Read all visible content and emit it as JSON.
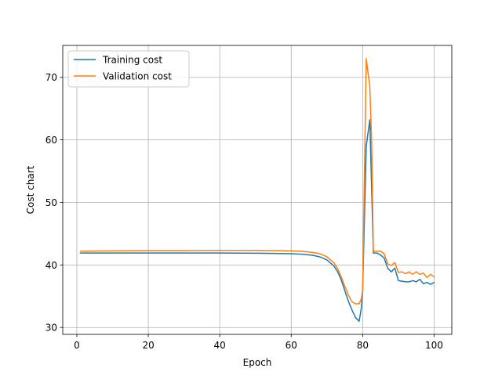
{
  "chart_data": {
    "type": "line",
    "xlabel": "Epoch",
    "ylabel": "Cost chart",
    "xlim": [
      -3.95,
      104.95
    ],
    "ylim": [
      28.9,
      75.1
    ],
    "xticks": [
      0,
      20,
      40,
      60,
      80,
      100
    ],
    "yticks": [
      30,
      40,
      50,
      60,
      70
    ],
    "grid": true,
    "legend_position": "upper-left",
    "series": [
      {
        "name": "Training cost",
        "color": "#1f77b4",
        "points": [
          [
            1,
            41.9
          ],
          [
            10,
            41.9
          ],
          [
            20,
            41.9
          ],
          [
            30,
            41.9
          ],
          [
            40,
            41.9
          ],
          [
            50,
            41.88
          ],
          [
            55,
            41.85
          ],
          [
            60,
            41.8
          ],
          [
            63,
            41.72
          ],
          [
            66,
            41.55
          ],
          [
            68,
            41.3
          ],
          [
            70,
            40.8
          ],
          [
            72,
            39.8
          ],
          [
            73,
            38.9
          ],
          [
            74,
            37.6
          ],
          [
            75,
            35.9
          ],
          [
            76,
            34.2
          ],
          [
            77,
            32.8
          ],
          [
            78,
            31.6
          ],
          [
            79,
            31.0
          ],
          [
            79.6,
            33.0
          ],
          [
            80,
            36.0
          ],
          [
            81,
            59.0
          ],
          [
            82,
            63.2
          ],
          [
            83,
            41.9
          ],
          [
            84,
            41.9
          ],
          [
            85,
            41.6
          ],
          [
            86,
            41.1
          ],
          [
            87,
            39.5
          ],
          [
            88,
            38.9
          ],
          [
            89,
            39.5
          ],
          [
            90,
            37.5
          ],
          [
            91,
            37.4
          ],
          [
            92,
            37.3
          ],
          [
            93,
            37.3
          ],
          [
            94,
            37.5
          ],
          [
            95,
            37.3
          ],
          [
            96,
            37.7
          ],
          [
            97,
            37.0
          ],
          [
            98,
            37.2
          ],
          [
            99,
            36.9
          ],
          [
            100,
            37.2
          ]
        ]
      },
      {
        "name": "Validation cost",
        "color": "#ff7f0e",
        "points": [
          [
            1,
            42.2
          ],
          [
            10,
            42.25
          ],
          [
            20,
            42.3
          ],
          [
            30,
            42.3
          ],
          [
            40,
            42.32
          ],
          [
            50,
            42.32
          ],
          [
            55,
            42.3
          ],
          [
            60,
            42.25
          ],
          [
            63,
            42.18
          ],
          [
            66,
            42.0
          ],
          [
            68,
            41.8
          ],
          [
            70,
            41.3
          ],
          [
            72,
            40.3
          ],
          [
            73,
            39.4
          ],
          [
            74,
            38.1
          ],
          [
            75,
            36.6
          ],
          [
            76,
            35.2
          ],
          [
            77,
            34.1
          ],
          [
            78,
            33.8
          ],
          [
            79,
            33.8
          ],
          [
            79.6,
            34.5
          ],
          [
            80,
            36.0
          ],
          [
            81,
            73.0
          ],
          [
            82,
            68.5
          ],
          [
            82.5,
            60.0
          ],
          [
            83,
            42.2
          ],
          [
            84,
            42.2
          ],
          [
            85,
            42.2
          ],
          [
            86,
            41.8
          ],
          [
            87,
            40.2
          ],
          [
            88,
            39.9
          ],
          [
            89,
            40.4
          ],
          [
            90,
            38.8
          ],
          [
            91,
            38.9
          ],
          [
            92,
            38.6
          ],
          [
            93,
            38.9
          ],
          [
            94,
            38.5
          ],
          [
            95,
            38.9
          ],
          [
            96,
            38.5
          ],
          [
            97,
            38.7
          ],
          [
            98,
            38.0
          ],
          [
            99,
            38.5
          ],
          [
            100,
            38.1
          ]
        ]
      }
    ]
  }
}
